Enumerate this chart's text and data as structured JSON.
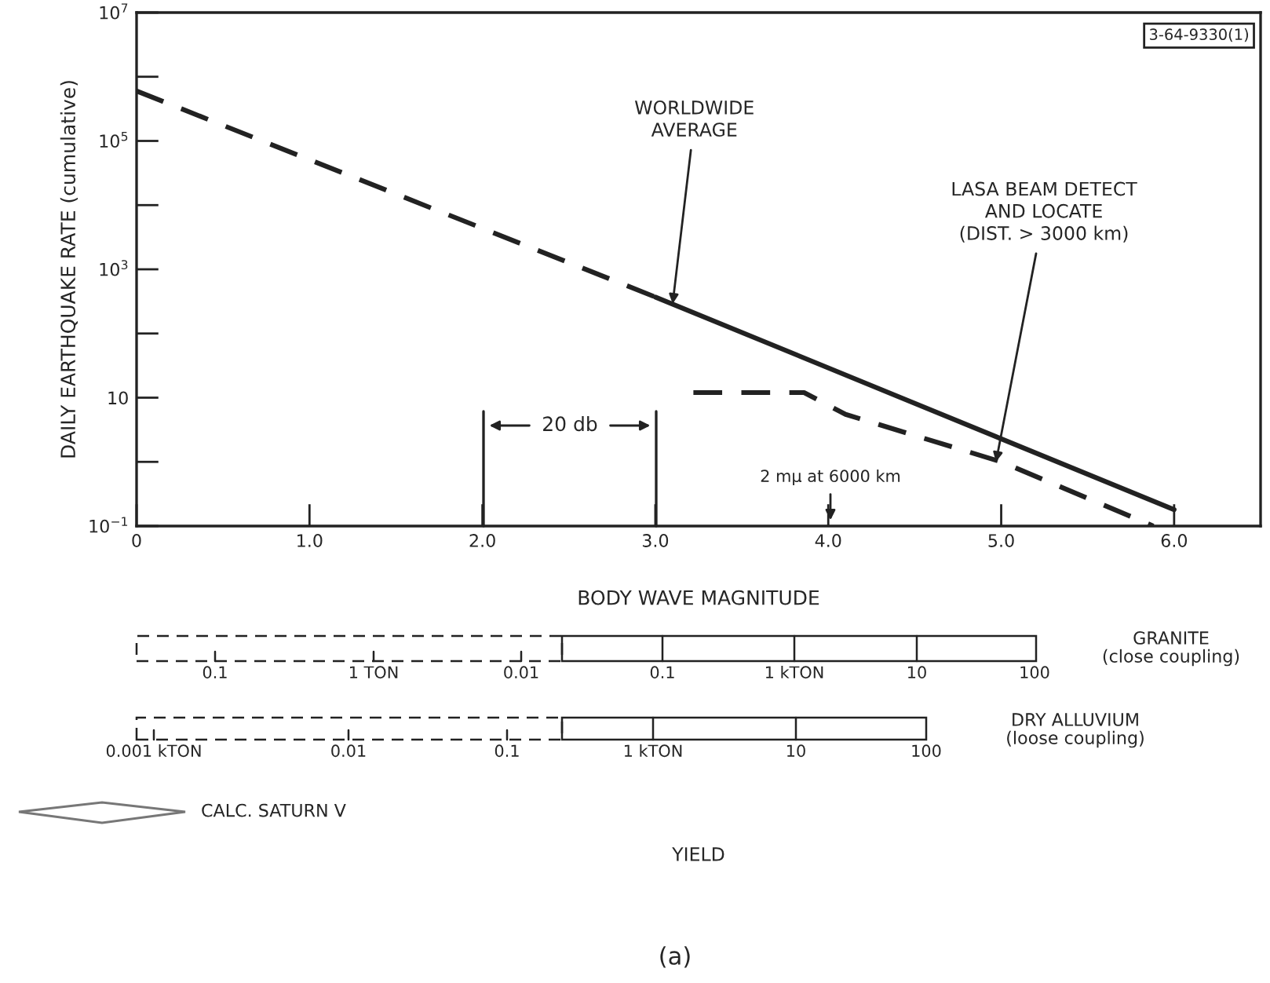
{
  "chart_data": [
    {
      "type": "line",
      "xlabel": "BODY WAVE MAGNITUDE",
      "ylabel": "DAILY EARTHQUAKE RATE (cumulative)",
      "log": "y",
      "xlim": [
        0,
        6.5
      ],
      "ylim": [
        0.1,
        10000000
      ],
      "xticks": [
        0,
        {
          "value": 1,
          "label": "1.0"
        },
        {
          "value": 2,
          "label": "2.0"
        },
        {
          "value": 3,
          "label": "3.0"
        },
        {
          "value": 4,
          "label": "4.0"
        },
        {
          "value": 5,
          "label": "5.0"
        },
        {
          "value": 6,
          "label": "6.0"
        }
      ],
      "yticks": [
        {
          "value": 0.1,
          "label": "10$^{−1}$"
        },
        {
          "value": 1,
          "label": null
        },
        {
          "value": 10,
          "label": "10"
        },
        {
          "value": 100,
          "label": null
        },
        {
          "value": 1000,
          "label": "10$^{3}$"
        },
        {
          "value": 10000,
          "label": null
        },
        {
          "value": 100000,
          "label": "10$^{5}$"
        },
        {
          "value": 1000000,
          "label": null
        },
        {
          "value": 10000000,
          "label": "10$^{7}$"
        }
      ],
      "series": [
        {
          "color": "#222222",
          "line_style": "dashed",
          "x": [
            0,
            3
          ],
          "values": [
            600000,
            370
          ]
        },
        {
          "color": "#222222",
          "line_style": "solid",
          "x": [
            3,
            6
          ],
          "values": [
            370,
            0.18
          ]
        },
        {
          "color": "#222222",
          "line_style": "dashed",
          "x": [
            3.22,
            3.86,
            4.1,
            5.0,
            5.88
          ],
          "values": [
            12,
            12,
            5.5,
            1.0,
            0.1
          ]
        }
      ],
      "annotations": [
        {
          "text": "WORLDWIDE\nAVERAGE",
          "x": 3.1,
          "y": 290
        },
        {
          "text": "LASA BEAM DETECT\nAND LOCATE\n(DIST. > 3000 km)",
          "x": 4.97,
          "y": 1.0
        },
        "2 mμ at 6000 km",
        "20 db",
        "3-64-9330(1)"
      ]
    },
    {
      "type": "other",
      "y2label": "GRANITE\n(close coupling)",
      "annotations": [
        "0.1",
        "1 TON",
        "0.01",
        "0.1",
        "1 kTON",
        "10",
        "100"
      ]
    },
    {
      "type": "other",
      "y2label": "DRY ALLUVIUM\n(loose coupling)",
      "annotations": [
        "0.001 kTON",
        "0.01",
        "0.1",
        "1 kTON",
        "10",
        "100"
      ]
    },
    {
      "type": "other",
      "xlabel": "YIELD",
      "annotations": [
        "CALC. SATURN Ⅴ",
        "(a)"
      ]
    }
  ]
}
